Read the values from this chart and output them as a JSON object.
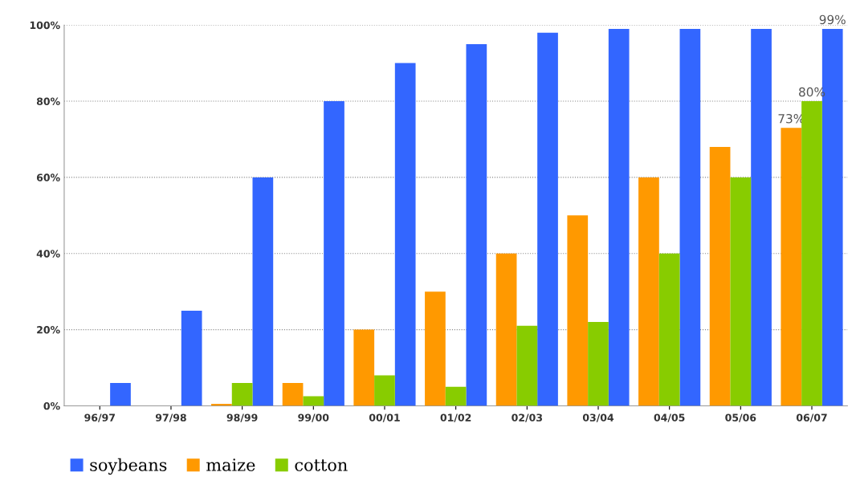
{
  "chart_data": {
    "type": "bar",
    "categories": [
      "96/97",
      "97/98",
      "98/99",
      "99/00",
      "00/01",
      "01/02",
      "02/03",
      "03/04",
      "04/05",
      "05/06",
      "06/07"
    ],
    "series": [
      {
        "name": "soybeans",
        "color": "#3366ff",
        "values": [
          6,
          25,
          60,
          80,
          90,
          95,
          98,
          99,
          99,
          99,
          99
        ],
        "value_labels": [
          null,
          null,
          null,
          null,
          null,
          null,
          null,
          null,
          null,
          null,
          "99%"
        ]
      },
      {
        "name": "maize",
        "color": "#ff9900",
        "values": [
          0,
          0,
          0.5,
          6,
          20,
          30,
          40,
          50,
          60,
          68,
          73
        ],
        "value_labels": [
          null,
          null,
          null,
          null,
          null,
          null,
          null,
          null,
          null,
          null,
          "73%"
        ]
      },
      {
        "name": "cotton",
        "color": "#88cc00",
        "values": [
          0,
          0,
          6,
          2.5,
          8,
          5,
          21,
          22,
          40,
          60,
          80
        ],
        "value_labels": [
          null,
          null,
          null,
          null,
          null,
          null,
          null,
          null,
          null,
          null,
          "80%"
        ]
      }
    ],
    "ylim": [
      0,
      100
    ],
    "yticks": [
      {
        "value": 0,
        "label": "0%"
      },
      {
        "value": 20,
        "label": "20%"
      },
      {
        "value": 40,
        "label": "40%"
      },
      {
        "value": 60,
        "label": "60%"
      },
      {
        "value": 80,
        "label": "80%"
      },
      {
        "value": 100,
        "label": "100%"
      }
    ],
    "grid": "y",
    "legend": "bottom left"
  }
}
